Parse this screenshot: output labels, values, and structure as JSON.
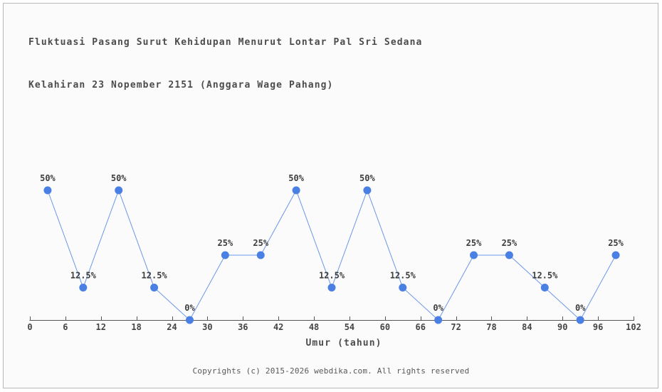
{
  "chart_data": {
    "type": "line",
    "title": "Fluktuasi Pasang Surut Kehidupan Menurut Lontar Pal Sri Sedana Kelahiran 23 Nopember 2151 (Anggara Wage Pahang)",
    "title_lines": [
      "Fluktuasi Pasang Surut Kehidupan Menurut Lontar Pal Sri Sedana",
      "Kelahiran 23 Nopember 2151 (Anggara Wage Pahang)"
    ],
    "xlabel": "Umur (tahun)",
    "ylabel": "",
    "x": [
      3,
      9,
      15,
      21,
      27,
      33,
      39,
      45,
      51,
      57,
      63,
      69,
      75,
      81,
      87,
      93,
      99
    ],
    "values": [
      50,
      12.5,
      50,
      12.5,
      0,
      25,
      25,
      50,
      12.5,
      50,
      12.5,
      0,
      25,
      25,
      12.5,
      0,
      25
    ],
    "point_labels": [
      "50%",
      "12.5%",
      "50%",
      "12.5%",
      "0%",
      "25%",
      "25%",
      "50%",
      "12.5%",
      "50%",
      "12.5%",
      "0%",
      "25%",
      "25%",
      "12.5%",
      "0%",
      "25%"
    ],
    "x_ticks": [
      0,
      6,
      12,
      18,
      24,
      30,
      36,
      42,
      48,
      54,
      60,
      66,
      72,
      78,
      84,
      90,
      96,
      102
    ],
    "xlim": [
      0,
      102
    ],
    "ylim": [
      0,
      50
    ],
    "grid": false,
    "legend": "none",
    "colors": {
      "line": "#6a97e8",
      "point": "#4a80e4",
      "axis": "#555555",
      "tick_text": "#444444",
      "label_text": "#3d3d3d",
      "title_text": "#4c4c4c",
      "panel_bg": "#fbfbfb",
      "panel_border": "#b9b9b9"
    }
  },
  "footer": {
    "text": "Copyrights (c) 2015-2026 webdika.com. All rights reserved"
  }
}
